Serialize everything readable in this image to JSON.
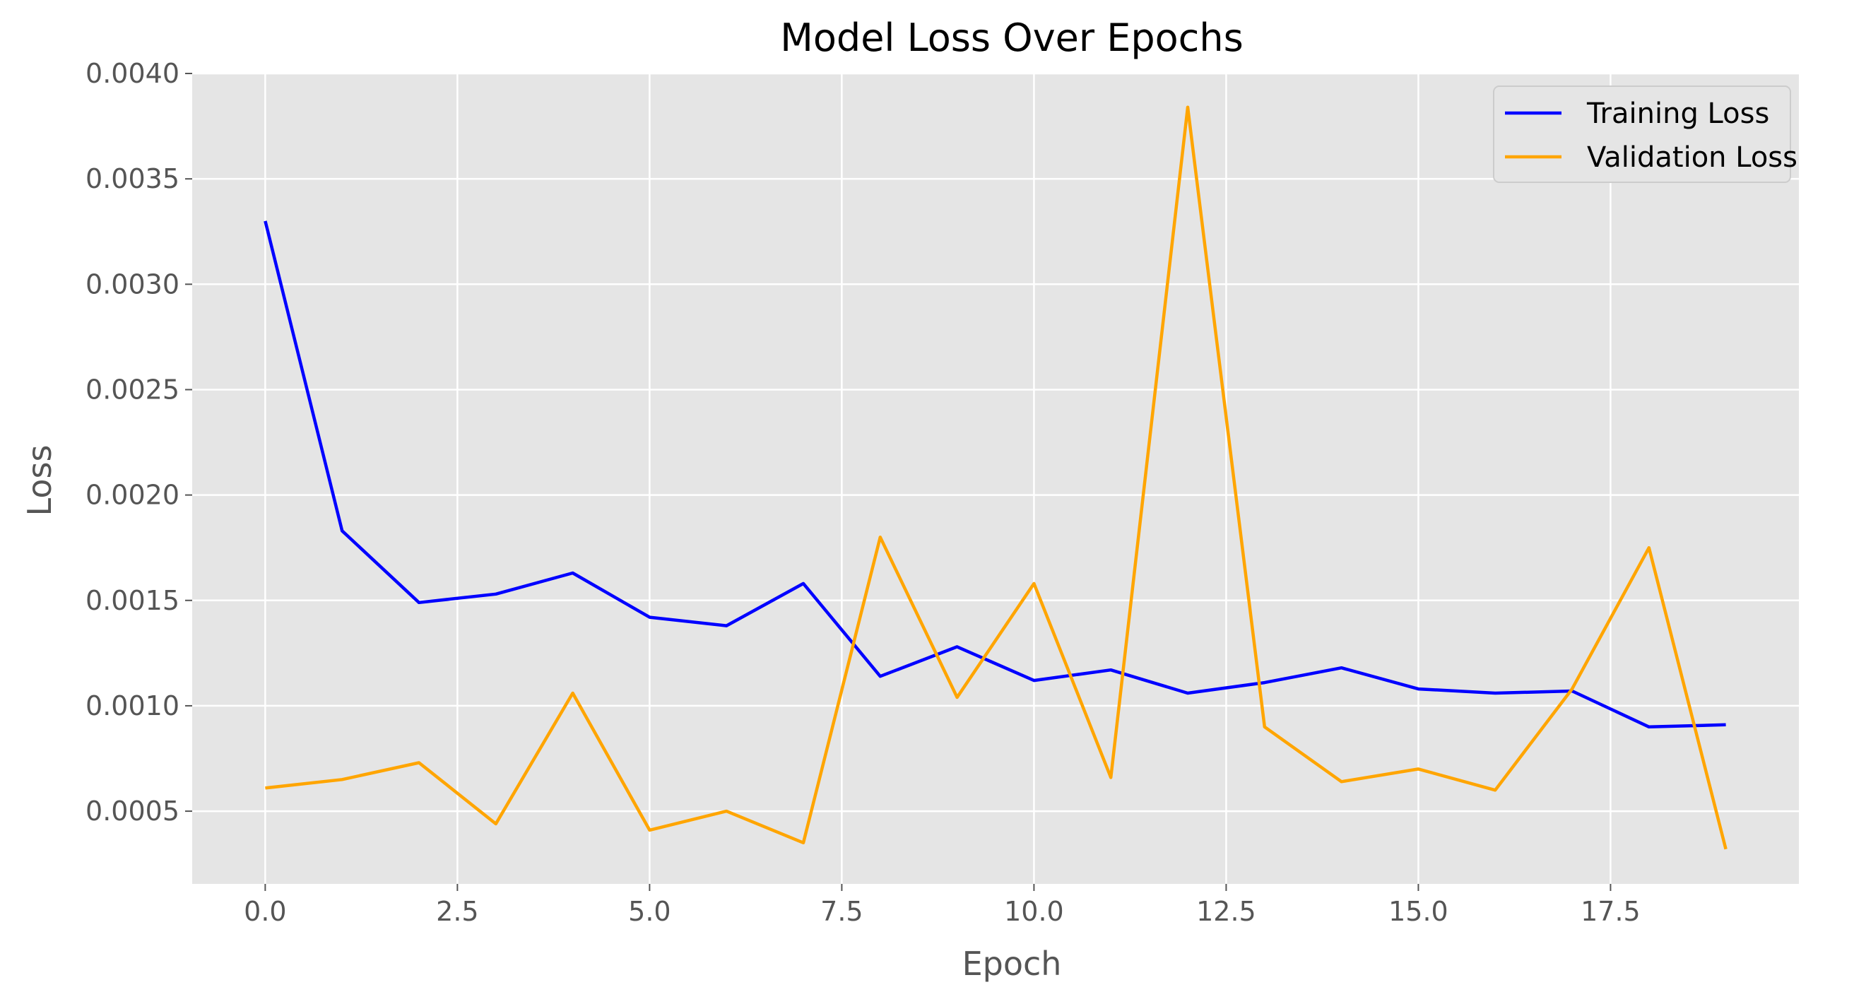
{
  "chart_data": {
    "type": "line",
    "title": "Model Loss Over Epochs",
    "xlabel": "Epoch",
    "ylabel": "Loss",
    "xlim": [
      -0.95,
      19.95
    ],
    "ylim": [
      0.000155,
      0.004
    ],
    "xticks": [
      0.0,
      2.5,
      5.0,
      7.5,
      10.0,
      12.5,
      15.0,
      17.5
    ],
    "xtick_labels": [
      "0.0",
      "2.5",
      "5.0",
      "7.5",
      "10.0",
      "12.5",
      "15.0",
      "17.5"
    ],
    "yticks": [
      0.0005,
      0.001,
      0.0015,
      0.002,
      0.0025,
      0.003,
      0.0035,
      0.004
    ],
    "ytick_labels": [
      "0.0005",
      "0.0010",
      "0.0015",
      "0.0020",
      "0.0025",
      "0.0030",
      "0.0035",
      "0.0040"
    ],
    "grid": true,
    "legend_position": "top-right",
    "background": "#e5e5e5",
    "x": [
      0,
      1,
      2,
      3,
      4,
      5,
      6,
      7,
      8,
      9,
      10,
      11,
      12,
      13,
      14,
      15,
      16,
      17,
      18,
      19
    ],
    "series": [
      {
        "name": "Training Loss",
        "color": "#0000ff",
        "values": [
          0.0033,
          0.00183,
          0.00149,
          0.00153,
          0.00163,
          0.00142,
          0.00138,
          0.00158,
          0.00114,
          0.00128,
          0.00112,
          0.00117,
          0.00106,
          0.00111,
          0.00118,
          0.00108,
          0.00106,
          0.00107,
          0.0009,
          0.00091
        ]
      },
      {
        "name": "Validation Loss",
        "color": "#ffa500",
        "values": [
          0.00061,
          0.00065,
          0.00073,
          0.00044,
          0.00106,
          0.00041,
          0.0005,
          0.00035,
          0.0018,
          0.00104,
          0.00158,
          0.00066,
          0.00384,
          0.0009,
          0.00064,
          0.0007,
          0.0006,
          0.00108,
          0.00175,
          0.00032
        ]
      }
    ]
  }
}
